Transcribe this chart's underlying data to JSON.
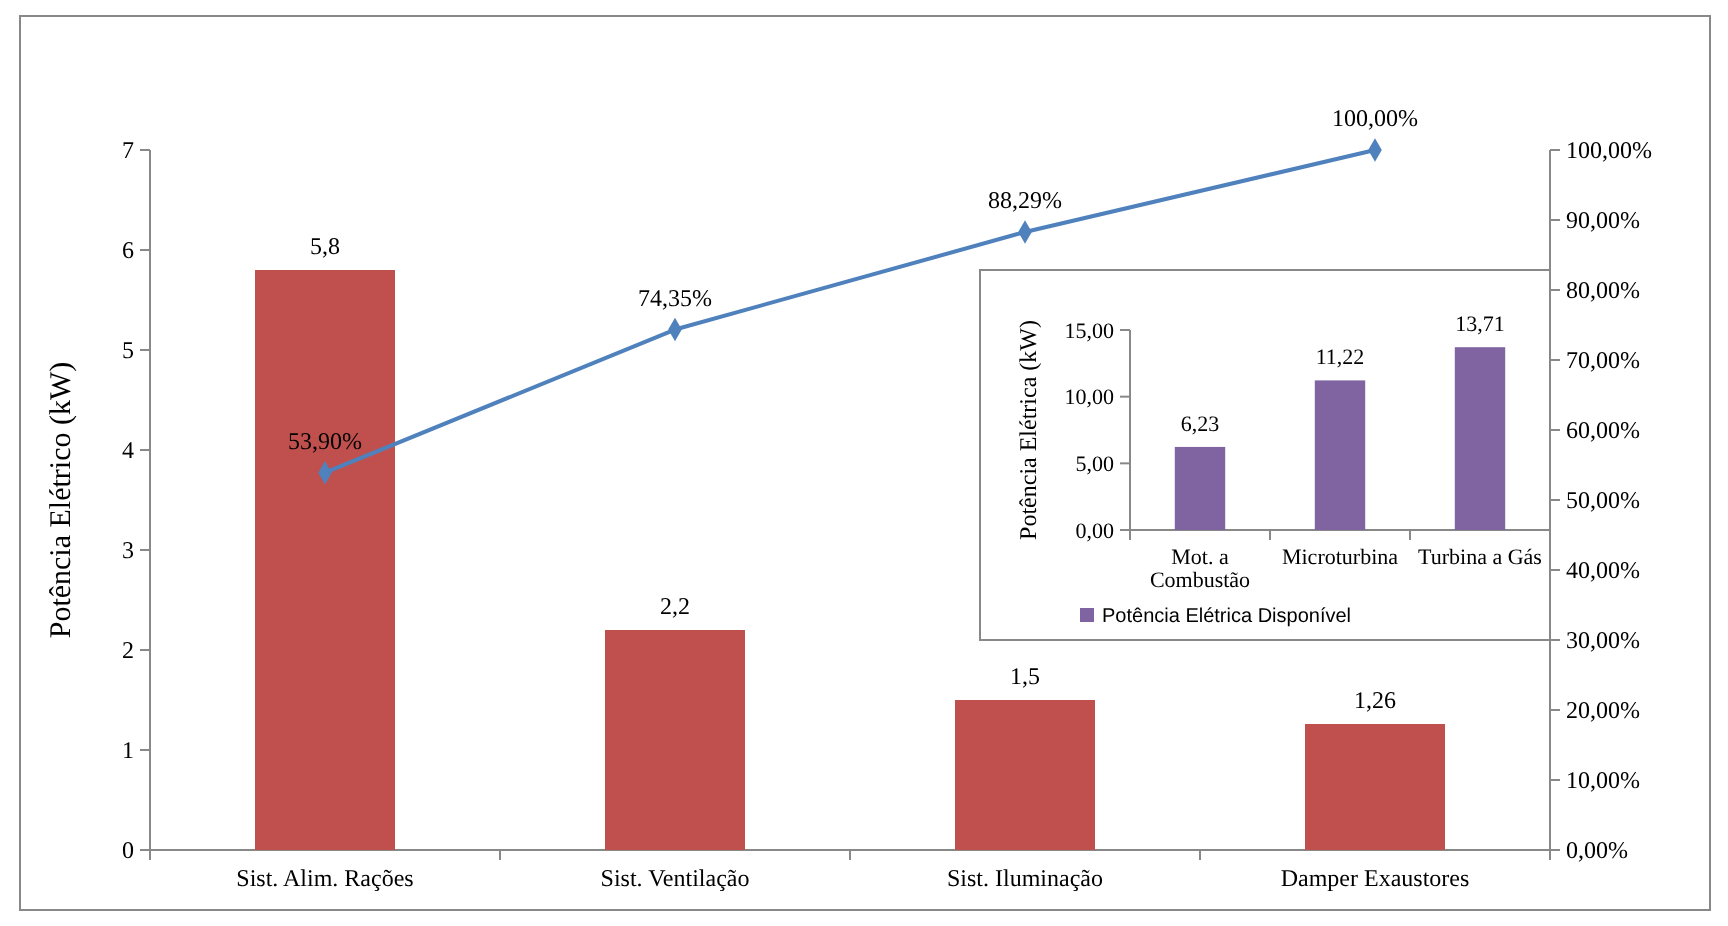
{
  "chart_data": [
    {
      "type": "bar",
      "categories": [
        "Sist. Alim. Rações",
        "Sist. Ventilação",
        "Sist. Iluminação",
        "Damper Exaustores"
      ],
      "ylabel": "Potência Elétrico (kW)",
      "ylim": [
        0,
        7
      ],
      "yticks": [
        0,
        1,
        2,
        3,
        4,
        5,
        6,
        7
      ],
      "y2lim": [
        0,
        100
      ],
      "y2ticks": [
        {
          "value": 0,
          "label": "0,00%"
        },
        {
          "value": 10,
          "label": "10,00%"
        },
        {
          "value": 20,
          "label": "20,00%"
        },
        {
          "value": 30,
          "label": "30,00%"
        },
        {
          "value": 40,
          "label": "40,00%"
        },
        {
          "value": 50,
          "label": "50,00%"
        },
        {
          "value": 60,
          "label": "60,00%"
        },
        {
          "value": 70,
          "label": "70,00%"
        },
        {
          "value": 80,
          "label": "80,00%"
        },
        {
          "value": 90,
          "label": "90,00%"
        },
        {
          "value": 100,
          "label": "100,00%"
        }
      ],
      "legend": false,
      "series": [
        {
          "color": "#c0504d",
          "values": [
            5.8,
            2.2,
            1.5,
            1.26
          ],
          "value_labels": [
            "5,8",
            "2,2",
            "1,5",
            "1,26"
          ]
        },
        {
          "type": "line",
          "axis": "y2",
          "color": "#4f81bd",
          "marker": "diamond",
          "line_style": "solid",
          "values": [
            53.9,
            74.35,
            88.29,
            100
          ],
          "value_labels": [
            "53,90%",
            "74,35%",
            "88,29%",
            "100,00%"
          ]
        }
      ]
    },
    {
      "type": "bar",
      "categories": [
        "Mot. a Combustão",
        "Microturbina",
        "Turbina a Gás"
      ],
      "ylabel": "Potência Elétrica (kW)",
      "ylim": [
        0,
        15
      ],
      "yticks": [
        {
          "value": 0,
          "label": "0,00"
        },
        {
          "value": 5,
          "label": "5,00"
        },
        {
          "value": 10,
          "label": "10,00"
        },
        {
          "value": 15,
          "label": "15,00"
        }
      ],
      "legend": "bottom",
      "series": [
        {
          "name": "Potência Elétrica Disponível",
          "color": "#8064a2",
          "values": [
            6.23,
            11.22,
            13.71
          ],
          "value_labels": [
            "6,23",
            "11,22",
            "13,71"
          ]
        }
      ]
    }
  ]
}
